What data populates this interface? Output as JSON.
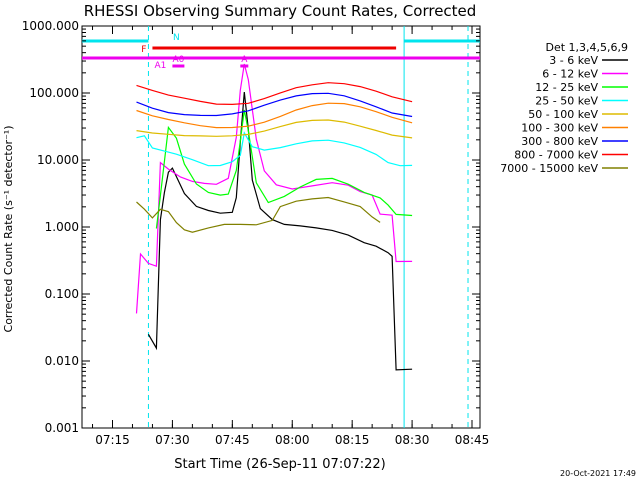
{
  "chart_data": {
    "type": "line",
    "title": "RHESSI Observing Summary Count Rates, Corrected",
    "xlabel": "Start Time (26-Sep-11 07:07:22)",
    "ylabel": "Corrected Count Rate (s⁻¹ detector⁻¹)",
    "yscale": "log",
    "ylim": [
      0.001,
      1000
    ],
    "xlim": [
      "07:07:22",
      "08:47:00"
    ],
    "xticks": [
      "07:15",
      "07:30",
      "07:45",
      "08:00",
      "08:15",
      "08:30",
      "08:45"
    ],
    "yticks": [
      "0.001",
      "0.010",
      "0.100",
      "1.000",
      "10.000",
      "100.000",
      "1000.000"
    ],
    "footer": "20-Oct-2021 17:49",
    "legend": {
      "title": "Det 1,3,4,5,6,9",
      "position": "right"
    },
    "series": [
      {
        "name": "3 - 6 keV",
        "color": "#000000",
        "points": [
          [
            "07:24",
            0.025
          ],
          [
            "07:26",
            0.015
          ],
          [
            "07:27",
            1.2
          ],
          [
            "07:28",
            3
          ],
          [
            "07:29",
            6
          ],
          [
            "07:30",
            7
          ],
          [
            "07:33",
            3
          ],
          [
            "07:36",
            2
          ],
          [
            "07:39",
            1.8
          ],
          [
            "07:42",
            1.7
          ],
          [
            "07:45",
            1.8
          ],
          [
            "07:46",
            3
          ],
          [
            "07:47",
            20
          ],
          [
            "07:48",
            110
          ],
          [
            "07:49",
            30
          ],
          [
            "07:50",
            5
          ],
          [
            "07:52",
            1.8
          ],
          [
            "07:55",
            1.2
          ],
          [
            "07:58",
            1.0
          ],
          [
            "08:02",
            0.95
          ],
          [
            "08:06",
            0.9
          ],
          [
            "08:10",
            0.85
          ],
          [
            "08:14",
            0.75
          ],
          [
            "08:18",
            0.6
          ],
          [
            "08:21",
            0.55
          ],
          [
            "08:24",
            0.45
          ],
          [
            "08:25",
            0.4
          ],
          [
            "08:26",
            0.008
          ],
          [
            "08:30",
            0.008
          ]
        ]
      },
      {
        "name": "6 - 12 keV",
        "color": "#ff00ff",
        "points": [
          [
            "07:21",
            0.05
          ],
          [
            "07:22",
            0.4
          ],
          [
            "07:24",
            0.3
          ],
          [
            "07:26",
            0.28
          ],
          [
            "07:27",
            10
          ],
          [
            "07:29",
            8
          ],
          [
            "07:32",
            6
          ],
          [
            "07:35",
            5
          ],
          [
            "07:38",
            4.5
          ],
          [
            "07:41",
            4.2
          ],
          [
            "07:44",
            5
          ],
          [
            "07:46",
            20
          ],
          [
            "07:47",
            100
          ],
          [
            "07:48",
            250
          ],
          [
            "07:49",
            150
          ],
          [
            "07:51",
            20
          ],
          [
            "07:53",
            7
          ],
          [
            "07:56",
            4.5
          ],
          [
            "08:00",
            4
          ],
          [
            "08:05",
            4.5
          ],
          [
            "08:10",
            5
          ],
          [
            "08:14",
            4.5
          ],
          [
            "08:17",
            3.5
          ],
          [
            "08:20",
            3
          ],
          [
            "08:22",
            1.5
          ],
          [
            "08:25",
            1.4
          ],
          [
            "08:26",
            0.28
          ],
          [
            "08:30",
            0.28
          ]
        ]
      },
      {
        "name": "12 - 25 keV",
        "color": "#00ff00",
        "points": [
          [
            "07:26",
            1.0
          ],
          [
            "07:27",
            3
          ],
          [
            "07:29",
            30
          ],
          [
            "07:31",
            20
          ],
          [
            "07:33",
            8
          ],
          [
            "07:36",
            4
          ],
          [
            "07:39",
            3
          ],
          [
            "07:42",
            2.8
          ],
          [
            "07:44",
            3
          ],
          [
            "07:46",
            7
          ],
          [
            "07:47",
            20
          ],
          [
            "07:48",
            60
          ],
          [
            "07:49",
            30
          ],
          [
            "07:51",
            5
          ],
          [
            "07:54",
            2.5
          ],
          [
            "07:58",
            3
          ],
          [
            "08:02",
            4
          ],
          [
            "08:06",
            5
          ],
          [
            "08:10",
            5
          ],
          [
            "08:14",
            4
          ],
          [
            "08:18",
            3
          ],
          [
            "08:22",
            2.5
          ],
          [
            "08:24",
            2
          ],
          [
            "08:26",
            1.5
          ],
          [
            "08:30",
            1.5
          ]
        ]
      },
      {
        "name": "25 - 50 keV",
        "color": "#00ffff",
        "points": [
          [
            "07:21",
            20
          ],
          [
            "07:23",
            22
          ],
          [
            "07:25",
            15
          ],
          [
            "07:28",
            14
          ],
          [
            "07:31",
            13
          ],
          [
            "07:35",
            11
          ],
          [
            "07:39",
            9
          ],
          [
            "07:42",
            9
          ],
          [
            "07:45",
            10
          ],
          [
            "07:47",
            12
          ],
          [
            "07:48",
            25
          ],
          [
            "07:50",
            15
          ],
          [
            "07:53",
            13
          ],
          [
            "07:57",
            14
          ],
          [
            "08:01",
            16
          ],
          [
            "08:05",
            18
          ],
          [
            "08:09",
            19
          ],
          [
            "08:13",
            18
          ],
          [
            "08:17",
            16
          ],
          [
            "08:21",
            13
          ],
          [
            "08:24",
            10
          ],
          [
            "08:27",
            9
          ],
          [
            "08:30",
            9
          ]
        ]
      },
      {
        "name": "50 - 100 keV",
        "color": "#ddbb00",
        "points": [
          [
            "07:21",
            30
          ],
          [
            "07:25",
            27
          ],
          [
            "07:29",
            25
          ],
          [
            "07:33",
            23
          ],
          [
            "07:37",
            22
          ],
          [
            "07:41",
            21
          ],
          [
            "07:45",
            21
          ],
          [
            "07:49",
            22
          ],
          [
            "07:53",
            25
          ],
          [
            "07:57",
            30
          ],
          [
            "08:01",
            36
          ],
          [
            "08:05",
            40
          ],
          [
            "08:09",
            42
          ],
          [
            "08:13",
            40
          ],
          [
            "08:17",
            35
          ],
          [
            "08:21",
            30
          ],
          [
            "08:25",
            25
          ],
          [
            "08:30",
            22
          ]
        ]
      },
      {
        "name": "100 - 300 keV",
        "color": "#ff8000",
        "points": [
          [
            "07:21",
            50
          ],
          [
            "07:25",
            42
          ],
          [
            "07:29",
            38
          ],
          [
            "07:33",
            35
          ],
          [
            "07:37",
            33
          ],
          [
            "07:41",
            32
          ],
          [
            "07:45",
            33
          ],
          [
            "07:49",
            35
          ],
          [
            "07:53",
            40
          ],
          [
            "07:57",
            48
          ],
          [
            "08:01",
            58
          ],
          [
            "08:05",
            65
          ],
          [
            "08:09",
            68
          ],
          [
            "08:13",
            65
          ],
          [
            "08:17",
            57
          ],
          [
            "08:21",
            48
          ],
          [
            "08:25",
            40
          ],
          [
            "08:30",
            34
          ]
        ]
      },
      {
        "name": "300 - 800 keV",
        "color": "#0000ff",
        "points": [
          [
            "07:21",
            80
          ],
          [
            "07:25",
            65
          ],
          [
            "07:29",
            55
          ],
          [
            "07:33",
            50
          ],
          [
            "07:37",
            47
          ],
          [
            "07:41",
            45
          ],
          [
            "07:45",
            46
          ],
          [
            "07:49",
            50
          ],
          [
            "07:53",
            60
          ],
          [
            "07:57",
            72
          ],
          [
            "08:01",
            85
          ],
          [
            "08:05",
            95
          ],
          [
            "08:09",
            100
          ],
          [
            "08:13",
            95
          ],
          [
            "08:17",
            82
          ],
          [
            "08:21",
            68
          ],
          [
            "08:25",
            55
          ],
          [
            "08:30",
            48
          ]
        ]
      },
      {
        "name": "800 - 7000 keV",
        "color": "#ff0000",
        "points": [
          [
            "07:21",
            120
          ],
          [
            "07:25",
            100
          ],
          [
            "07:29",
            85
          ],
          [
            "07:33",
            78
          ],
          [
            "07:37",
            72
          ],
          [
            "07:41",
            68
          ],
          [
            "07:45",
            70
          ],
          [
            "07:49",
            75
          ],
          [
            "07:53",
            90
          ],
          [
            "07:57",
            110
          ],
          [
            "08:01",
            130
          ],
          [
            "08:05",
            140
          ],
          [
            "08:09",
            145
          ],
          [
            "08:13",
            135
          ],
          [
            "08:17",
            118
          ],
          [
            "08:21",
            98
          ],
          [
            "08:25",
            80
          ],
          [
            "08:30",
            68
          ]
        ]
      },
      {
        "name": "7000 - 15000 keV",
        "color": "#808000",
        "points": [
          [
            "07:21",
            2.5
          ],
          [
            "07:23",
            2.0
          ],
          [
            "07:25",
            1.5
          ],
          [
            "07:27",
            2.0
          ],
          [
            "07:29",
            1.8
          ],
          [
            "07:31",
            1.2
          ],
          [
            "07:33",
            0.9
          ],
          [
            "07:35",
            0.8
          ],
          [
            "07:39",
            0.9
          ],
          [
            "07:43",
            1.0
          ],
          [
            "07:47",
            1.0
          ],
          [
            "07:51",
            1.0
          ],
          [
            "07:55",
            1.2
          ],
          [
            "07:57",
            2.0
          ],
          [
            "08:01",
            2.5
          ],
          [
            "08:05",
            2.8
          ],
          [
            "08:09",
            3.0
          ],
          [
            "08:13",
            2.6
          ],
          [
            "08:17",
            2.2
          ],
          [
            "08:20",
            1.5
          ],
          [
            "08:22",
            1.2
          ]
        ]
      }
    ],
    "flag_bars": [
      {
        "label": "N",
        "color": "#00e5ee",
        "y_level": 1,
        "segments": [
          [
            "07:07:22",
            "07:24"
          ],
          [
            "08:28",
            "08:47"
          ]
        ]
      },
      {
        "label": "F",
        "color": "#ee0000",
        "y_level": 2,
        "segments": [
          [
            "07:25",
            "08:26"
          ]
        ]
      },
      {
        "label": "A1",
        "color": "#ee00ee",
        "y_level": 3,
        "segments": [
          [
            "07:07:22",
            "08:47"
          ]
        ]
      },
      {
        "label": "A0",
        "color": "#ee00ee",
        "y_level": 4,
        "segments": [
          [
            "07:30",
            "07:33"
          ]
        ]
      },
      {
        "label": "A",
        "color": "#ee00ee",
        "y_level": 4,
        "segments": [
          [
            "07:47",
            "07:49"
          ]
        ]
      }
    ],
    "vlines": [
      {
        "time": "07:24",
        "color": "#00e5ee",
        "style": "dashed"
      },
      {
        "time": "08:28",
        "color": "#00e5ee",
        "style": "solid"
      },
      {
        "time": "08:44",
        "color": "#00e5ee",
        "style": "dashed"
      }
    ]
  }
}
